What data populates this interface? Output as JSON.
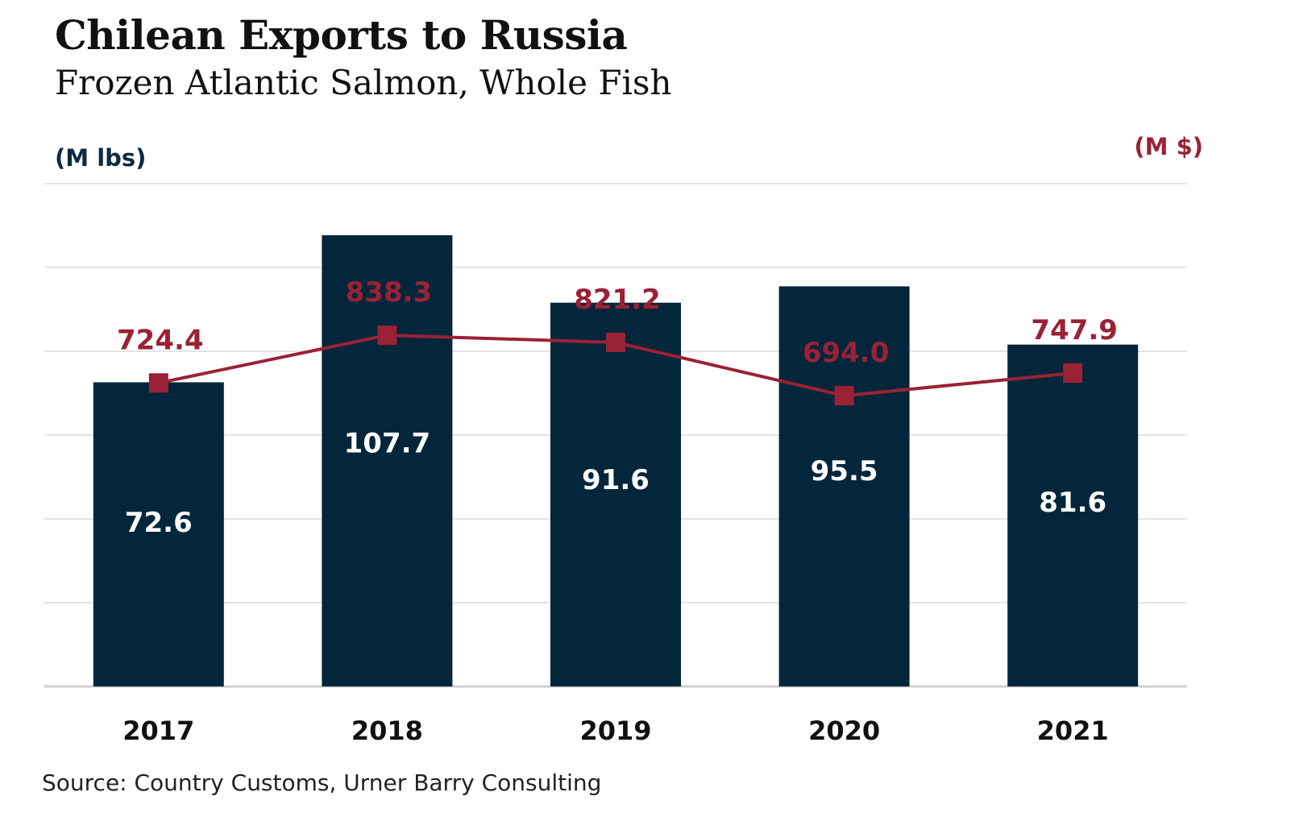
{
  "chart_data": {
    "type": "bar",
    "title": "Chilean Exports to Russia",
    "subtitle": "Frozen Atlantic Salmon, Whole Fish",
    "categories": [
      "2017",
      "2018",
      "2019",
      "2020",
      "2021"
    ],
    "series": [
      {
        "type": "bar",
        "axis": "left",
        "values": [
          72.6,
          107.7,
          91.6,
          95.5,
          81.6
        ],
        "labels": [
          "72.6",
          "107.7",
          "91.6",
          "95.5",
          "81.6"
        ],
        "color": "#03263b"
      },
      {
        "type": "line",
        "axis": "right",
        "values": [
          724.4,
          838.3,
          821.2,
          694.0,
          747.9
        ],
        "labels": [
          "724.4",
          "838.3",
          "821.2",
          "694.0",
          "747.9"
        ],
        "color": "#9b2136",
        "marker": "square"
      }
    ],
    "ylabel": "(M lbs)",
    "y2label": "(M $)",
    "ylim": [
      0,
      120
    ],
    "y2lim": [
      0,
      1200
    ],
    "grid": true,
    "source": "Source: Country Customs, Urner Barry Consulting"
  }
}
